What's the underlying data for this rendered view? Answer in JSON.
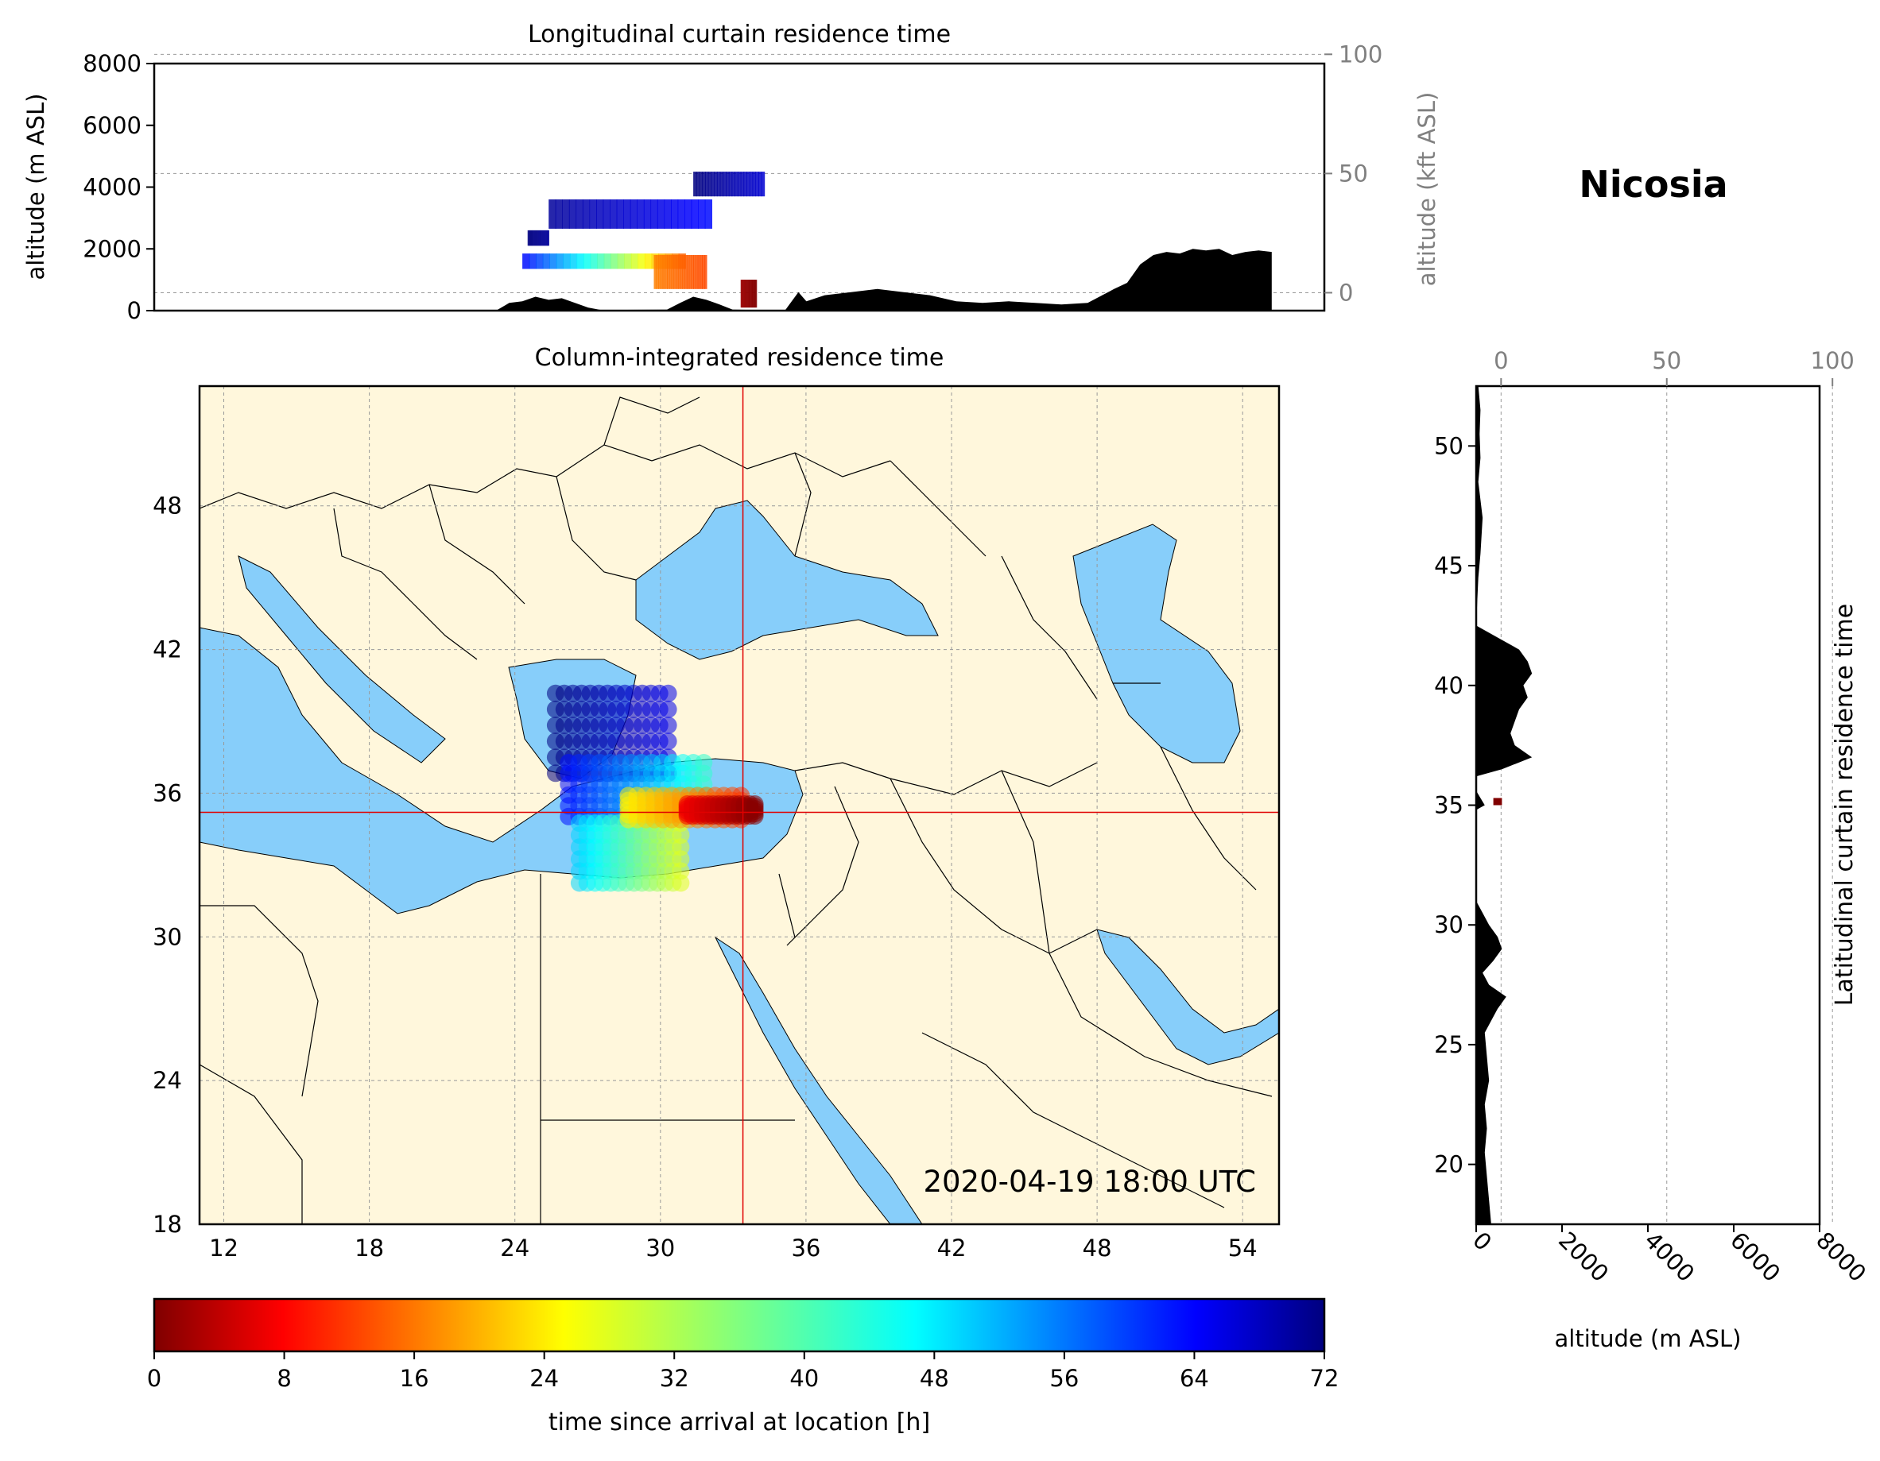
{
  "figure": {
    "location_title": "Nicosia"
  },
  "colors": {
    "sea": "#87cefa",
    "land": "#fff7dc",
    "border": "#000000",
    "crosshair": "#e00000",
    "terrain": "#000000",
    "secondary_axis": "#808080"
  },
  "chart_data": [
    {
      "id": "longitudinal",
      "type": "heatmap",
      "title": "Longitudinal curtain residence time",
      "xlabel": "",
      "ylabel": "altitude (m ASL)",
      "ylim": [
        0,
        8000
      ],
      "yticks": [
        0,
        2000,
        4000,
        6000,
        8000
      ],
      "secondary_ylabel": "altitude (kft ASL)",
      "secondary_yticks": [
        0,
        50,
        100
      ],
      "xlim": [
        11,
        55.5
      ],
      "grid": true,
      "terrain_profile": [
        [
          11,
          0
        ],
        [
          24,
          0
        ],
        [
          24.5,
          250
        ],
        [
          25,
          300
        ],
        [
          25.5,
          450
        ],
        [
          26,
          350
        ],
        [
          26.5,
          400
        ],
        [
          27,
          250
        ],
        [
          27.5,
          100
        ],
        [
          28,
          20
        ],
        [
          30.5,
          30
        ],
        [
          31,
          250
        ],
        [
          31.5,
          450
        ],
        [
          32,
          350
        ],
        [
          32.5,
          200
        ],
        [
          33,
          30
        ],
        [
          34,
          20
        ],
        [
          35,
          20
        ],
        [
          35.5,
          600
        ],
        [
          35.8,
          300
        ],
        [
          36.5,
          500
        ],
        [
          37.5,
          600
        ],
        [
          38.5,
          700
        ],
        [
          39.5,
          600
        ],
        [
          40.5,
          500
        ],
        [
          41.5,
          300
        ],
        [
          42.5,
          250
        ],
        [
          43.5,
          300
        ],
        [
          44.5,
          250
        ],
        [
          45.5,
          200
        ],
        [
          46.5,
          250
        ],
        [
          47.5,
          700
        ],
        [
          48,
          900
        ],
        [
          48.5,
          1500
        ],
        [
          49,
          1800
        ],
        [
          49.5,
          1900
        ],
        [
          50,
          1850
        ],
        [
          50.5,
          2000
        ],
        [
          51,
          1950
        ],
        [
          51.5,
          2000
        ],
        [
          52,
          1800
        ],
        [
          52.5,
          1900
        ],
        [
          53,
          1950
        ],
        [
          53.5,
          1900
        ],
        [
          53.5,
          0
        ]
      ],
      "residence_segments": [
        {
          "lon": [
            25.2,
            26.0
          ],
          "alt": [
            2100,
            2600
          ],
          "time_h": [
            70,
            72
          ]
        },
        {
          "lon": [
            26.0,
            32.2
          ],
          "alt": [
            2650,
            3600
          ],
          "time_h": [
            62,
            70
          ]
        },
        {
          "lon": [
            31.5,
            34.2
          ],
          "alt": [
            3700,
            4500
          ],
          "time_h": [
            66,
            72
          ]
        },
        {
          "lon": [
            25.0,
            31.2
          ],
          "alt": [
            1350,
            1850
          ],
          "time_h": [
            14,
            62
          ]
        },
        {
          "lon": [
            30.0,
            32.0
          ],
          "alt": [
            700,
            1800
          ],
          "time_h": [
            14,
            18
          ]
        },
        {
          "lon": [
            33.3,
            33.9
          ],
          "alt": [
            100,
            1000
          ],
          "time_h": [
            0,
            2
          ]
        }
      ]
    },
    {
      "id": "column",
      "type": "heatmap",
      "title": "Column-integrated residence time",
      "xlim": [
        11,
        55.5
      ],
      "ylim": [
        18,
        53
      ],
      "xticks": [
        12,
        18,
        24,
        30,
        36,
        42,
        48,
        54
      ],
      "yticks": [
        18,
        24,
        30,
        36,
        42,
        48
      ],
      "grid": true,
      "crosshair": {
        "lon": 33.4,
        "lat": 35.2
      },
      "annotation": "2020-04-19 18:00 UTC",
      "plume": [
        {
          "lon": [
            25.5,
            30.5
          ],
          "lat": [
            36.5,
            40.5
          ],
          "time_h": [
            64,
            72
          ]
        },
        {
          "lon": [
            26.0,
            32.0
          ],
          "lat": [
            34.8,
            37.5
          ],
          "time_h": [
            40,
            62
          ]
        },
        {
          "lon": [
            26.5,
            31.0
          ],
          "lat": [
            32.0,
            35.0
          ],
          "time_h": [
            28,
            48
          ]
        },
        {
          "lon": [
            28.5,
            33.5
          ],
          "lat": [
            34.8,
            36.0
          ],
          "time_h": [
            12,
            26
          ]
        },
        {
          "lon": [
            31.0,
            34.0
          ],
          "lat": [
            35.0,
            35.6
          ],
          "time_h": [
            0,
            8
          ]
        }
      ]
    },
    {
      "id": "latitudinal",
      "type": "heatmap",
      "title": "Latitudinal curtain residence time",
      "xlabel": "altitude (m ASL)",
      "xlim": [
        0,
        8000
      ],
      "xticks": [
        0,
        2000,
        4000,
        6000,
        8000
      ],
      "secondary_xticks": [
        0,
        50,
        100
      ],
      "ylim": [
        17.5,
        52.5
      ],
      "yticks": [
        20,
        25,
        30,
        35,
        40,
        45,
        50
      ],
      "grid": true,
      "terrain_profile": [
        [
          17.5,
          350
        ],
        [
          18.5,
          300
        ],
        [
          19.5,
          250
        ],
        [
          20.5,
          200
        ],
        [
          21.5,
          250
        ],
        [
          22.5,
          200
        ],
        [
          23.5,
          300
        ],
        [
          24.5,
          250
        ],
        [
          25.5,
          200
        ],
        [
          26.5,
          500
        ],
        [
          27,
          700
        ],
        [
          27.5,
          300
        ],
        [
          28,
          150
        ],
        [
          28.5,
          400
        ],
        [
          29,
          600
        ],
        [
          29.5,
          500
        ],
        [
          30,
          300
        ],
        [
          30.5,
          150
        ],
        [
          31,
          0
        ],
        [
          34.8,
          0
        ],
        [
          35,
          200
        ],
        [
          35.3,
          100
        ],
        [
          35.6,
          0
        ],
        [
          36.2,
          0
        ],
        [
          36.5,
          600
        ],
        [
          37,
          1300
        ],
        [
          37.5,
          900
        ],
        [
          38,
          800
        ],
        [
          38.5,
          900
        ],
        [
          39,
          1000
        ],
        [
          39.5,
          1200
        ],
        [
          40,
          1100
        ],
        [
          40.5,
          1300
        ],
        [
          41,
          1200
        ],
        [
          41.5,
          1000
        ],
        [
          42,
          500
        ],
        [
          42.5,
          0
        ],
        [
          44.5,
          50
        ],
        [
          45.5,
          100
        ],
        [
          47,
          150
        ],
        [
          48.5,
          50
        ],
        [
          49.5,
          100
        ],
        [
          50.5,
          80
        ],
        [
          51.5,
          100
        ],
        [
          52.5,
          50
        ]
      ],
      "residence_segments": [
        {
          "lat": [
            35.0,
            35.3
          ],
          "alt": [
            400,
            600
          ],
          "time_h": [
            0,
            6
          ]
        }
      ]
    },
    {
      "id": "colorbar",
      "type": "colorbar",
      "xlabel": "time since arrival at location [h]",
      "range": [
        0,
        72
      ],
      "ticks": [
        0,
        8,
        16,
        24,
        32,
        40,
        48,
        56,
        64,
        72
      ],
      "colormap": "jet_r"
    }
  ]
}
